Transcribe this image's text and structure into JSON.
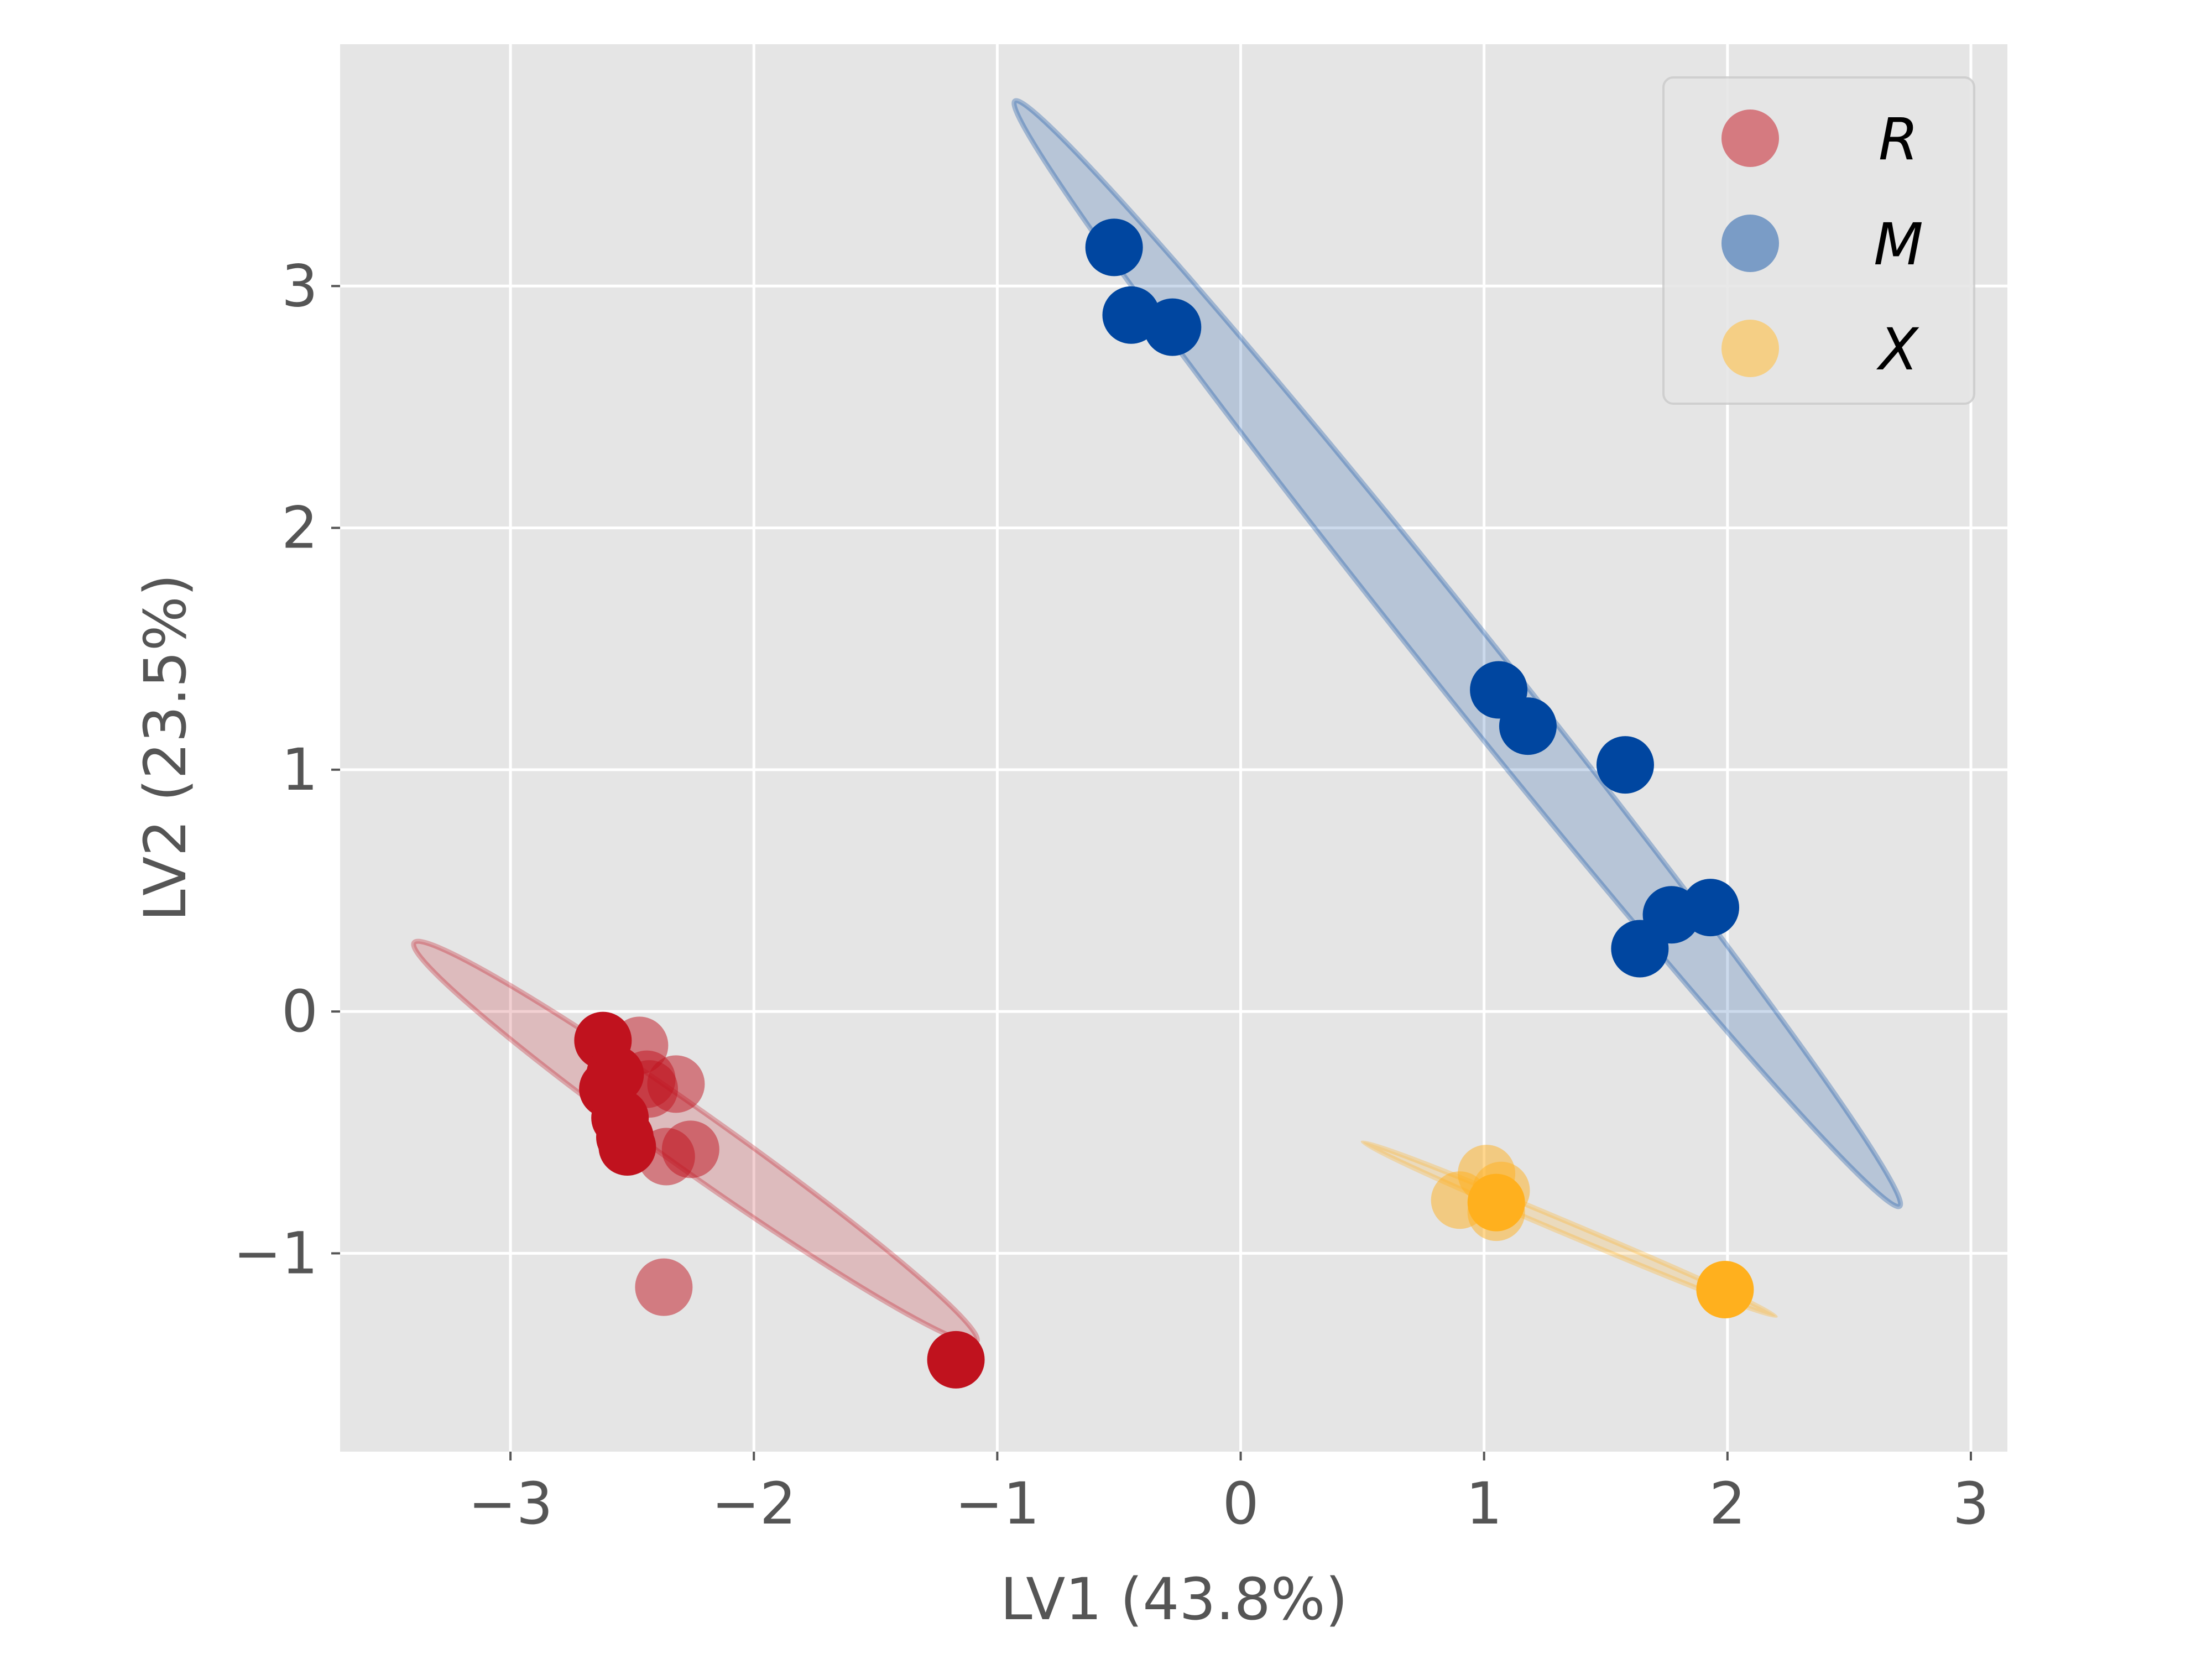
{
  "chart_data": {
    "type": "scatter",
    "xlabel": "LV1 (43.8%)",
    "ylabel": "LV2 (23.5%)",
    "xlim": [
      -3.7,
      3.15
    ],
    "ylim": [
      -1.82,
      4.0
    ],
    "xticks": [
      -3,
      -2,
      -1,
      0,
      1,
      2,
      3
    ],
    "yticks": [
      -1,
      0,
      1,
      2,
      3
    ],
    "grid": true,
    "legend_placement": "top-right",
    "background": "#e5e5e5",
    "series": [
      {
        "name": "R",
        "color": "#c0121e",
        "legend_color": "#d57a80",
        "points_solid": [
          [
            -2.62,
            -0.12
          ],
          [
            -2.57,
            -0.26
          ],
          [
            -2.6,
            -0.32
          ],
          [
            -2.55,
            -0.44
          ],
          [
            -2.53,
            -0.52
          ],
          [
            -2.52,
            -0.56
          ],
          [
            -1.17,
            -1.44
          ]
        ],
        "points_faded": [
          [
            -2.47,
            -0.14
          ],
          [
            -2.44,
            -0.28
          ],
          [
            -2.32,
            -0.3
          ],
          [
            -2.43,
            -0.32
          ],
          [
            -2.26,
            -0.57
          ],
          [
            -2.36,
            -0.6
          ],
          [
            -2.37,
            -1.14
          ]
        ],
        "ellipse": {
          "cx": -2.24,
          "cy": -0.54,
          "rx": 1.42,
          "ry": 0.12,
          "angle_deg": -35.5
        }
      },
      {
        "name": "M",
        "color": "#0046a0",
        "legend_color": "#7a9cc6",
        "points_solid": [
          [
            -0.52,
            3.16
          ],
          [
            -0.45,
            2.88
          ],
          [
            -0.28,
            2.83
          ],
          [
            1.06,
            1.33
          ],
          [
            1.18,
            1.18
          ],
          [
            1.58,
            1.02
          ],
          [
            1.77,
            0.4
          ],
          [
            1.93,
            0.43
          ],
          [
            1.64,
            0.26
          ]
        ],
        "points_faded": [],
        "ellipse": {
          "cx": 0.89,
          "cy": 1.48,
          "rx": 2.92,
          "ry": 0.14,
          "angle_deg": -51.5
        }
      },
      {
        "name": "X",
        "color": "#ffb01e",
        "legend_color": "#f5cf85",
        "points_solid": [
          [
            1.05,
            -0.79
          ],
          [
            1.99,
            -1.15
          ]
        ],
        "points_faded": [
          [
            1.01,
            -0.67
          ],
          [
            1.07,
            -0.74
          ],
          [
            0.9,
            -0.78
          ],
          [
            1.05,
            -0.83
          ]
        ],
        "ellipse": {
          "cx": 1.35,
          "cy": -0.9,
          "rx": 0.92,
          "ry": 0.025,
          "angle_deg": -23
        }
      }
    ]
  }
}
